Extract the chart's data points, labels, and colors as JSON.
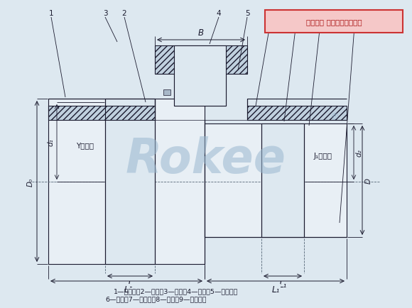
{
  "bg_color": "#dde8f0",
  "fill_light": "#cddce8",
  "fill_white": "#e8eff5",
  "line_color": "#1a1a2e",
  "hatch_color": "#333355",
  "watermark_text": "Rokee",
  "watermark_color": "#9ab8d0",
  "label_line1": "1—制动轮；2—螺栌；3—垫圈；4—外套；5—内挡板；",
  "label_line2": "6—柱销；7—外挡圈；8—挡圈；9—半联轴器",
  "copyright_text": "版权所有 侵权必被严厉追究",
  "dim_B": "B",
  "dim_L": "L",
  "dim_L1": "L₁",
  "dim_D0": "D₀",
  "dim_d1": "d₁",
  "dim_d2": "d₂",
  "dim_D": "D",
  "label_Y": "Y型轴孔",
  "label_J1": "J₁型轴孔"
}
